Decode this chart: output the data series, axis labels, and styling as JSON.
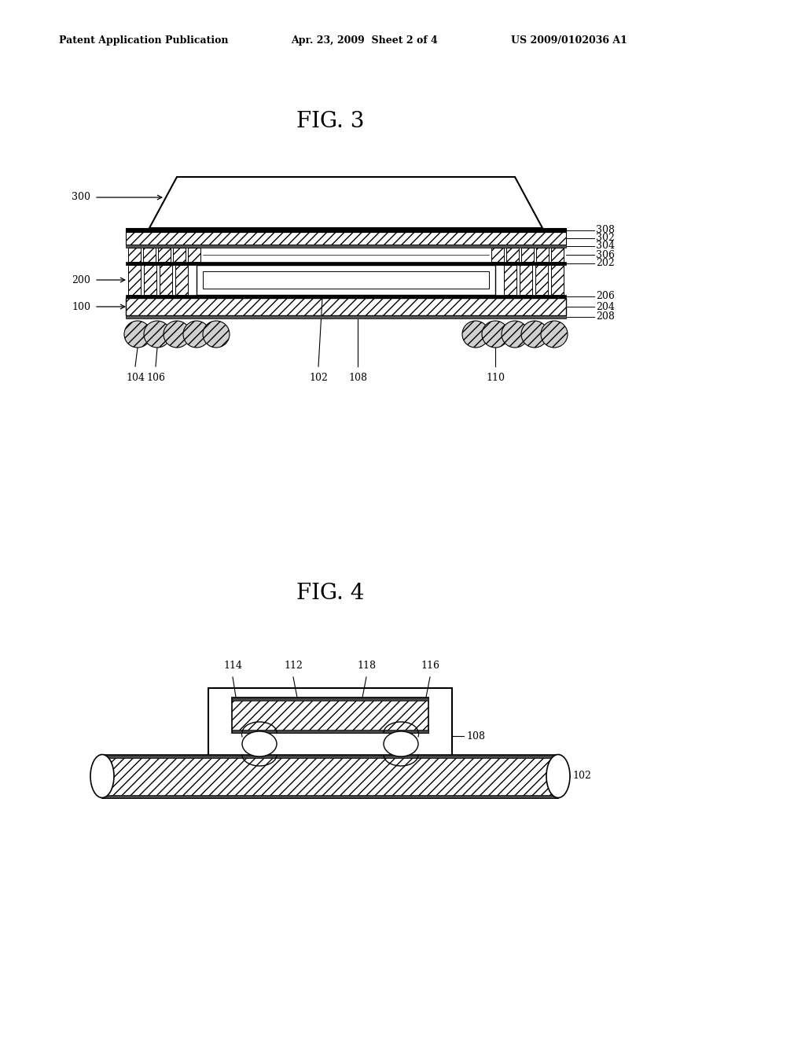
{
  "bg_color": "#ffffff",
  "fig_width": 10.24,
  "fig_height": 13.2,
  "header_text1": "Patent Application Publication",
  "header_text2": "Apr. 23, 2009  Sheet 2 of 4",
  "header_text3": "US 2009/0102036 A1",
  "fig3_title": "FIG. 3",
  "fig4_title": "FIG. 4",
  "label_fontsize": 9,
  "title_fontsize": 20,
  "header_fontsize": 9
}
